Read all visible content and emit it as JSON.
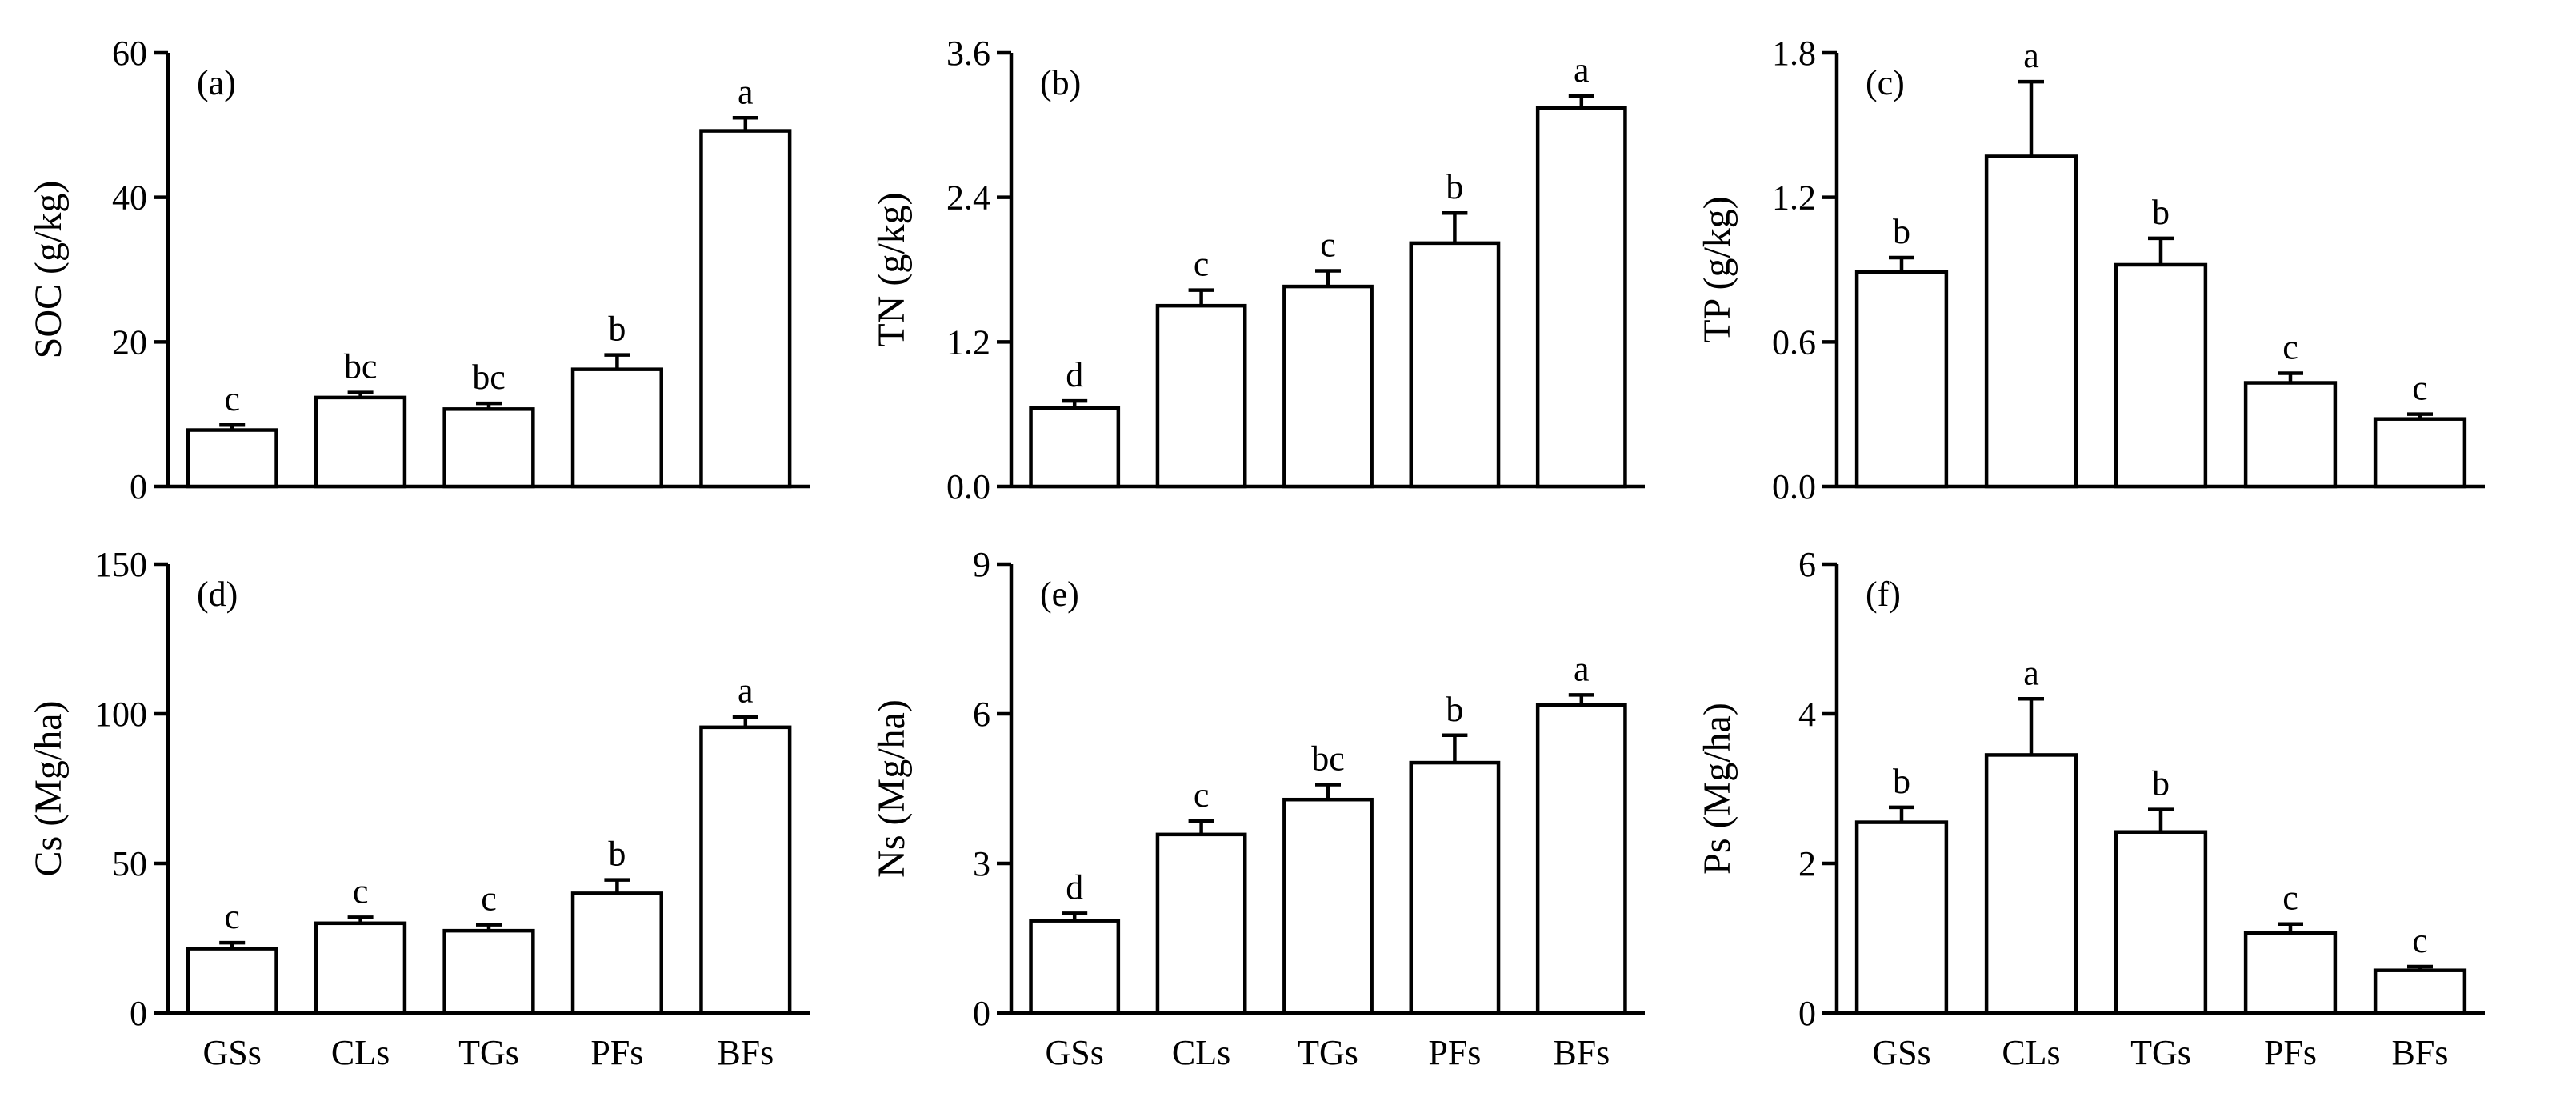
{
  "chart_data": [
    {
      "type": "bar",
      "panel_label": "(a)",
      "ylabel": "SOC (g/kg)",
      "categories": [
        "GSs",
        "CLs",
        "TGs",
        "PFs",
        "BFs"
      ],
      "values": [
        7.8,
        12.3,
        10.7,
        16.2,
        49.2
      ],
      "errors": [
        0.7,
        0.7,
        0.8,
        2.0,
        1.8
      ],
      "letters": [
        "c",
        "bc",
        "bc",
        "b",
        "a"
      ],
      "ylim": [
        0,
        60
      ],
      "yticks": [
        0,
        20,
        40,
        60
      ],
      "ytick_labels": [
        "0",
        "20",
        "40",
        "60"
      ],
      "show_xlabels": false
    },
    {
      "type": "bar",
      "panel_label": "(b)",
      "ylabel": "TN (g/kg)",
      "categories": [
        "GSs",
        "CLs",
        "TGs",
        "PFs",
        "BFs"
      ],
      "values": [
        0.65,
        1.5,
        1.66,
        2.02,
        3.14
      ],
      "errors": [
        0.06,
        0.13,
        0.13,
        0.25,
        0.1
      ],
      "letters": [
        "d",
        "c",
        "c",
        "b",
        "a"
      ],
      "ylim": [
        0,
        3.6
      ],
      "yticks": [
        0,
        1.2,
        2.4,
        3.6
      ],
      "ytick_labels": [
        "0.0",
        "1.2",
        "2.4",
        "3.6"
      ],
      "show_xlabels": false
    },
    {
      "type": "bar",
      "panel_label": "(c)",
      "ylabel": "TP (g/kg)",
      "categories": [
        "GSs",
        "CLs",
        "TGs",
        "PFs",
        "BFs"
      ],
      "values": [
        0.89,
        1.37,
        0.92,
        0.43,
        0.28
      ],
      "errors": [
        0.06,
        0.31,
        0.11,
        0.04,
        0.02
      ],
      "letters": [
        "b",
        "a",
        "b",
        "c",
        "c"
      ],
      "ylim": [
        0,
        1.8
      ],
      "yticks": [
        0,
        0.6,
        1.2,
        1.8
      ],
      "ytick_labels": [
        "0.0",
        "0.6",
        "1.2",
        "1.8"
      ],
      "show_xlabels": false
    },
    {
      "type": "bar",
      "panel_label": "(d)",
      "ylabel": "Cs (Mg/ha)",
      "categories": [
        "GSs",
        "CLs",
        "TGs",
        "PFs",
        "BFs"
      ],
      "values": [
        21.5,
        30.0,
        27.5,
        40.0,
        95.5
      ],
      "errors": [
        2.0,
        2.0,
        2.0,
        4.5,
        3.5
      ],
      "letters": [
        "c",
        "c",
        "c",
        "b",
        "a"
      ],
      "ylim": [
        0,
        150
      ],
      "yticks": [
        0,
        50,
        100,
        150
      ],
      "ytick_labels": [
        "0",
        "50",
        "100",
        "150"
      ],
      "show_xlabels": true
    },
    {
      "type": "bar",
      "panel_label": "(e)",
      "ylabel": "Ns (Mg/ha)",
      "categories": [
        "GSs",
        "CLs",
        "TGs",
        "PFs",
        "BFs"
      ],
      "values": [
        1.85,
        3.58,
        4.28,
        5.02,
        6.18
      ],
      "errors": [
        0.15,
        0.27,
        0.3,
        0.55,
        0.2
      ],
      "letters": [
        "d",
        "c",
        "bc",
        "b",
        "a"
      ],
      "ylim": [
        0,
        9
      ],
      "yticks": [
        0,
        3,
        6,
        9
      ],
      "ytick_labels": [
        "0",
        "3",
        "6",
        "9"
      ],
      "show_xlabels": true
    },
    {
      "type": "bar",
      "panel_label": "(f)",
      "ylabel": "Ps (Mg/ha)",
      "categories": [
        "GSs",
        "CLs",
        "TGs",
        "PFs",
        "BFs"
      ],
      "values": [
        2.55,
        3.45,
        2.42,
        1.07,
        0.57
      ],
      "errors": [
        0.2,
        0.75,
        0.3,
        0.12,
        0.05
      ],
      "letters": [
        "b",
        "a",
        "b",
        "c",
        "c"
      ],
      "ylim": [
        0,
        6
      ],
      "yticks": [
        0,
        2,
        4,
        6
      ],
      "ytick_labels": [
        "0",
        "2",
        "4",
        "6"
      ],
      "show_xlabels": true
    }
  ]
}
